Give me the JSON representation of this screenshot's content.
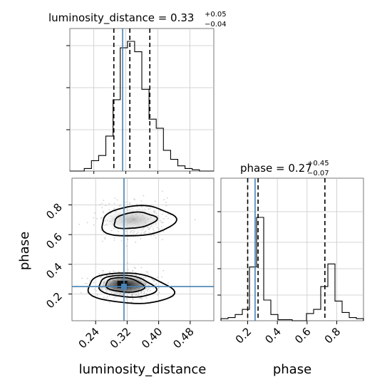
{
  "chart_data": {
    "type": "corner",
    "truth_color": "#4682b4",
    "hist_color": "#000000",
    "grid": true,
    "parameters": [
      "luminosity_distance",
      "phase"
    ],
    "luminosity_distance": {
      "label": "luminosity_distance",
      "title_main": "luminosity_distance = 0.33",
      "title_plus": "+0.05",
      "title_minus": "−0.04",
      "range": [
        0.18,
        0.54
      ],
      "ticks": [
        0.24,
        0.32,
        0.4,
        0.48
      ],
      "tick_labels": [
        "0.24",
        "0.32",
        "0.40",
        "0.48"
      ],
      "quantiles": [
        0.29,
        0.33,
        0.38
      ],
      "truth": 0.312,
      "hist": {
        "edges": [
          0.18,
          0.198,
          0.216,
          0.234,
          0.252,
          0.27,
          0.288,
          0.306,
          0.324,
          0.342,
          0.36,
          0.378,
          0.396,
          0.414,
          0.432,
          0.45,
          0.468,
          0.486,
          0.504,
          0.522,
          0.54
        ],
        "counts": [
          0,
          0,
          0.02,
          0.08,
          0.12,
          0.27,
          0.55,
          0.95,
          1.0,
          0.92,
          0.63,
          0.4,
          0.33,
          0.16,
          0.09,
          0.04,
          0.02,
          0.01,
          0,
          0
        ]
      }
    },
    "phase": {
      "label": "phase",
      "title_main": "phase = 0.27",
      "title_plus": "+0.45",
      "title_minus": "−0.07",
      "range": [
        0.02,
        0.98
      ],
      "ticks": [
        0.2,
        0.4,
        0.6,
        0.8
      ],
      "tick_labels": [
        "0.2",
        "0.4",
        "0.6",
        "0.8"
      ],
      "quantiles": [
        0.2,
        0.27,
        0.72
      ],
      "truth": 0.25,
      "hist": {
        "edges": [
          0.02,
          0.068,
          0.116,
          0.164,
          0.212,
          0.26,
          0.308,
          0.356,
          0.404,
          0.452,
          0.5,
          0.548,
          0.596,
          0.644,
          0.692,
          0.74,
          0.788,
          0.836,
          0.884,
          0.932,
          0.98
        ],
        "counts": [
          0.02,
          0.03,
          0.06,
          0.11,
          0.52,
          1.0,
          0.2,
          0.06,
          0.01,
          0.01,
          0,
          0,
          0.07,
          0.11,
          0.33,
          0.55,
          0.19,
          0.08,
          0.03,
          0.02
        ]
      }
    },
    "joint": {
      "x": "luminosity_distance",
      "y": "phase",
      "modes": [
        {
          "cx": 0.335,
          "cy": 0.7,
          "rx": 0.05,
          "ry": 0.07,
          "tilt_deg": 0,
          "density": 0.45
        },
        {
          "cx": 0.315,
          "cy": 0.26,
          "rx": 0.04,
          "ry": 0.05,
          "tilt_deg": -8,
          "density": 1.0
        }
      ]
    }
  }
}
